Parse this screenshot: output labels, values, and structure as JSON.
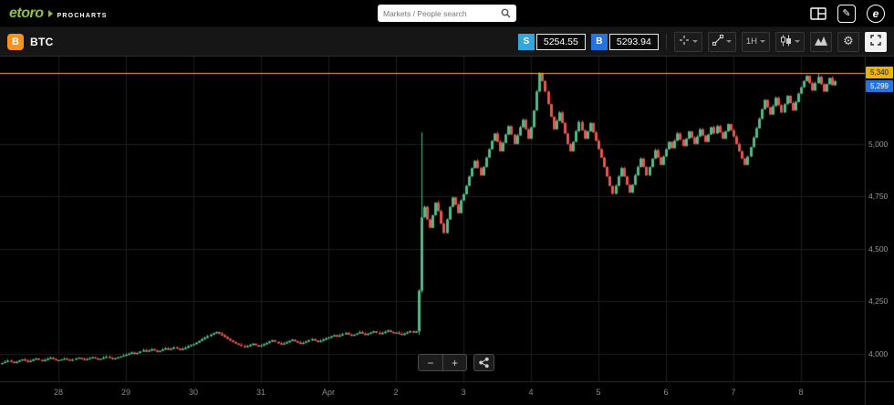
{
  "header": {
    "logo_text": "etoro",
    "logo_sub": "PROCHARTS",
    "search_placeholder": "Markets / People search"
  },
  "toolbar": {
    "symbol": "BTC",
    "symbol_badge": "B",
    "sell_label": "S",
    "sell_price": "5254.55",
    "buy_label": "B",
    "buy_price": "5293.94",
    "interval": "1H"
  },
  "zoom": {
    "out": "−",
    "in": "+"
  },
  "icons": [
    "search-icon",
    "layout-grid-icon",
    "draw-pencil-icon",
    "etoro-mark-icon",
    "bitcoin-icon",
    "crosshair-icon",
    "trendline-icon",
    "chevron-down-icon",
    "chart-style-icon",
    "compare-icon",
    "settings-gear-icon",
    "fullscreen-icon",
    "zoom-out-icon",
    "zoom-in-icon",
    "share-icon"
  ],
  "chart_data": {
    "type": "candlestick",
    "symbol": "BTC",
    "interval": "1H",
    "up_color": "#53b987",
    "down_color": "#e4564f",
    "grid_color": "#1e1e1e",
    "highlight_line": {
      "price": 5340,
      "label": "5,340",
      "color": "#e8b40a"
    },
    "last_price": {
      "price": 5299,
      "label": "5,299",
      "color": "#2673dd"
    },
    "y_axis": {
      "range": [
        3868,
        5417
      ],
      "ticks": [
        5000,
        4750,
        4500,
        4250,
        4000
      ],
      "tick_labels": [
        "5,000",
        "4,750",
        "4,500",
        "4,250",
        "4,000"
      ]
    },
    "x_axis": {
      "labels": [
        "28",
        "29",
        "30",
        "31",
        "Apr",
        "2",
        "3",
        "4",
        "5",
        "6",
        "7",
        "8"
      ],
      "first_label_index": 20,
      "candles_per_day": 24
    },
    "closes": [
      3955,
      3960,
      3966,
      3960,
      3955,
      3961,
      3967,
      3972,
      3966,
      3960,
      3965,
      3971,
      3976,
      3970,
      3964,
      3969,
      3975,
      3980,
      3974,
      3968,
      3968,
      3972,
      3975,
      3970,
      3966,
      3971,
      3976,
      3980,
      3974,
      3969,
      3973,
      3978,
      3982,
      3977,
      3971,
      3975,
      3980,
      3985,
      3979,
      3973,
      3977,
      3982,
      3986,
      3990,
      3994,
      3999,
      4005,
      3998,
      4003,
      4010,
      4016,
      4009,
      4014,
      4021,
      4015,
      4008,
      4013,
      4019,
      4025,
      4018,
      4023,
      4030,
      4024,
      4017,
      4022,
      4028,
      4035,
      4040,
      4045,
      4052,
      4060,
      4068,
      4075,
      4083,
      4090,
      4097,
      4103,
      4095,
      4087,
      4079,
      4070,
      4062,
      4055,
      4048,
      4042,
      4036,
      4030,
      4035,
      4041,
      4047,
      4040,
      4034,
      4038,
      4044,
      4050,
      4057,
      4063,
      4056,
      4049,
      4043,
      4048,
      4054,
      4060,
      4066,
      4059,
      4052,
      4046,
      4051,
      4057,
      4063,
      4069,
      4062,
      4055,
      4060,
      4066,
      4072,
      4076,
      4082,
      4088,
      4081,
      4086,
      4092,
      4098,
      4091,
      4085,
      4090,
      4096,
      4102,
      4095,
      4089,
      4094,
      4100,
      4106,
      4099,
      4093,
      4098,
      4104,
      4110,
      4103,
      4097,
      4100,
      4094,
      4089,
      4095,
      4101,
      4107,
      4100,
      4106,
      4300,
      4650,
      4700,
      4640,
      4600,
      4660,
      4720,
      4680,
      4620,
      4575,
      4640,
      4700,
      4745,
      4710,
      4670,
      4730,
      4760,
      4800,
      4845,
      4885,
      4920,
      4885,
      4850,
      4890,
      4935,
      4975,
      5015,
      5050,
      5010,
      4965,
      5005,
      5045,
      5085,
      5045,
      5000,
      5040,
      5080,
      5115,
      5070,
      5025,
      5080,
      5160,
      5250,
      5335,
      5300,
      5250,
      5190,
      5130,
      5070,
      5110,
      5150,
      5100,
      5050,
      5000,
      4965,
      5010,
      5060,
      5105,
      5065,
      5025,
      5060,
      5100,
      5055,
      5015,
      4975,
      4935,
      4890,
      4845,
      4800,
      4762,
      4800,
      4845,
      4885,
      4845,
      4805,
      4768,
      4805,
      4850,
      4890,
      4930,
      4890,
      4850,
      4890,
      4930,
      4970,
      4935,
      4900,
      4940,
      4975,
      5010,
      4980,
      5015,
      5050,
      5020,
      4990,
      5025,
      5060,
      5030,
      5000,
      5035,
      5070,
      5040,
      5010,
      5045,
      5080,
      5050,
      5085,
      5055,
      5025,
      5060,
      5095,
      5065,
      5035,
      5000,
      4965,
      4930,
      4900,
      4940,
      4985,
      5030,
      5075,
      5120,
      5165,
      5210,
      5175,
      5140,
      5180,
      5220,
      5185,
      5150,
      5190,
      5230,
      5195,
      5160,
      5200,
      5240,
      5270,
      5300,
      5325,
      5290,
      5255,
      5290,
      5320,
      5285,
      5250,
      5285,
      5315,
      5280,
      5299
    ],
    "wick_overrides": {
      "148": {
        "low": 4090
      },
      "149": {
        "high": 5055,
        "low": 4290
      },
      "191": {
        "high": 5343
      },
      "290": {
        "high": 5336
      }
    }
  }
}
